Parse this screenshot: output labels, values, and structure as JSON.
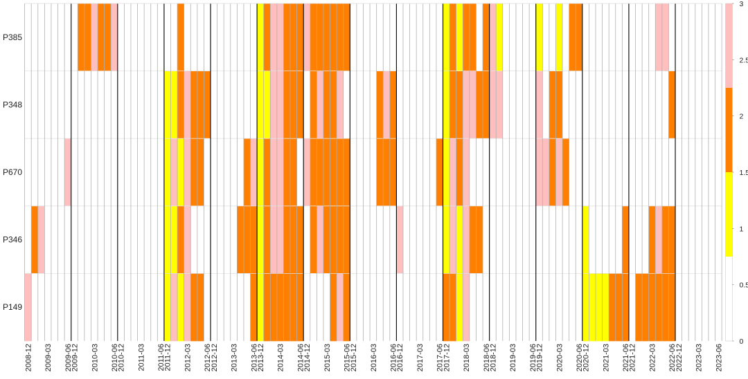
{
  "chart_data": {
    "type": "heatmap",
    "title": "",
    "xlabel": "",
    "ylabel": "",
    "rows": [
      "P385",
      "P348",
      "P670",
      "P346",
      "P149"
    ],
    "n_columns": 105,
    "x_ticks": [
      {
        "col": 0,
        "label": "2008-12"
      },
      {
        "col": 3,
        "label": "2009-03"
      },
      {
        "col": 6,
        "label": "2009-06"
      },
      {
        "col": 7,
        "label": "2009-12"
      },
      {
        "col": 10,
        "label": "2010-03"
      },
      {
        "col": 13,
        "label": "2010-06"
      },
      {
        "col": 14,
        "label": "2010-12"
      },
      {
        "col": 17,
        "label": "2011-03"
      },
      {
        "col": 20,
        "label": "2011-06"
      },
      {
        "col": 21,
        "label": "2011-12"
      },
      {
        "col": 24,
        "label": "2012-03"
      },
      {
        "col": 27,
        "label": "2012-06"
      },
      {
        "col": 28,
        "label": "2012-12"
      },
      {
        "col": 31,
        "label": "2013-03"
      },
      {
        "col": 34,
        "label": "2013-06"
      },
      {
        "col": 35,
        "label": "2013-12"
      },
      {
        "col": 38,
        "label": "2014-03"
      },
      {
        "col": 41,
        "label": "2014-06"
      },
      {
        "col": 42,
        "label": "2014-12"
      },
      {
        "col": 45,
        "label": "2015-03"
      },
      {
        "col": 48,
        "label": "2015-06"
      },
      {
        "col": 49,
        "label": "2015-12"
      },
      {
        "col": 52,
        "label": "2016-03"
      },
      {
        "col": 55,
        "label": "2016-06"
      },
      {
        "col": 56,
        "label": "2016-12"
      },
      {
        "col": 59,
        "label": "2017-03"
      },
      {
        "col": 62,
        "label": "2017-06"
      },
      {
        "col": 63,
        "label": "2017-12"
      },
      {
        "col": 66,
        "label": "2018-03"
      },
      {
        "col": 69,
        "label": "2018-06"
      },
      {
        "col": 70,
        "label": "2018-12"
      },
      {
        "col": 73,
        "label": "2019-03"
      },
      {
        "col": 76,
        "label": "2019-06"
      },
      {
        "col": 77,
        "label": "2019-12"
      },
      {
        "col": 80,
        "label": "2020-03"
      },
      {
        "col": 83,
        "label": "2020-06"
      },
      {
        "col": 84,
        "label": "2020-12"
      },
      {
        "col": 87,
        "label": "2021-03"
      },
      {
        "col": 90,
        "label": "2021-06"
      },
      {
        "col": 91,
        "label": "2021-12"
      },
      {
        "col": 94,
        "label": "2022-03"
      },
      {
        "col": 97,
        "label": "2022-06"
      },
      {
        "col": 98,
        "label": "2022-12"
      },
      {
        "col": 101,
        "label": "2023-03"
      },
      {
        "col": 104,
        "label": "2023-06"
      }
    ],
    "year_boundaries": [
      7,
      14,
      21,
      28,
      35,
      42,
      49,
      56,
      63,
      70,
      77,
      84,
      91,
      98
    ],
    "values": [
      [
        0,
        0,
        0,
        0,
        0,
        0,
        0,
        0,
        2,
        2,
        3,
        2,
        2,
        3,
        0,
        0,
        0,
        0,
        0,
        0,
        0,
        0,
        0,
        2,
        0,
        0,
        0,
        0,
        0,
        0,
        0,
        0,
        0,
        0,
        0,
        1,
        2,
        3,
        3,
        2,
        2,
        2,
        3,
        2,
        2,
        2,
        2,
        2,
        2,
        0,
        0,
        0,
        0,
        0,
        0,
        0,
        0,
        0,
        0,
        0,
        0,
        0,
        0,
        1,
        2,
        1,
        2,
        2,
        0,
        2,
        3,
        1,
        0,
        0,
        0,
        0,
        0,
        1,
        0,
        0,
        1,
        0,
        2,
        2,
        0,
        0,
        0,
        0,
        0,
        0,
        0,
        0,
        0,
        0,
        0,
        3,
        3,
        0,
        0,
        0,
        0,
        0,
        0,
        0,
        0
      ],
      [
        0,
        0,
        0,
        0,
        0,
        0,
        0,
        0,
        0,
        0,
        0,
        0,
        0,
        0,
        0,
        0,
        0,
        0,
        0,
        0,
        0,
        1,
        1,
        2,
        3,
        2,
        2,
        2,
        0,
        0,
        0,
        0,
        0,
        0,
        0,
        1,
        1,
        3,
        3,
        2,
        2,
        2,
        0,
        2,
        3,
        2,
        2,
        3,
        0,
        0,
        0,
        0,
        0,
        2,
        3,
        2,
        0,
        0,
        0,
        0,
        0,
        0,
        0,
        1,
        2,
        2,
        3,
        3,
        2,
        2,
        3,
        3,
        0,
        0,
        0,
        0,
        0,
        3,
        0,
        2,
        2,
        0,
        0,
        0,
        0,
        0,
        0,
        0,
        0,
        0,
        0,
        0,
        0,
        0,
        0,
        0,
        0,
        2,
        0,
        0,
        0,
        0,
        0,
        0,
        0
      ],
      [
        0,
        0,
        0,
        0,
        0,
        0,
        3,
        0,
        0,
        0,
        0,
        0,
        0,
        0,
        0,
        0,
        0,
        0,
        0,
        0,
        0,
        1,
        3,
        1,
        3,
        2,
        2,
        0,
        0,
        0,
        0,
        0,
        0,
        2,
        3,
        1,
        2,
        3,
        3,
        2,
        2,
        0,
        3,
        2,
        2,
        2,
        2,
        2,
        2,
        0,
        0,
        0,
        0,
        2,
        2,
        2,
        0,
        0,
        0,
        0,
        0,
        0,
        2,
        1,
        3,
        2,
        3,
        0,
        0,
        0,
        0,
        0,
        0,
        0,
        0,
        0,
        0,
        3,
        3,
        2,
        3,
        2,
        0,
        0,
        0,
        0,
        0,
        0,
        0,
        0,
        0,
        0,
        0,
        0,
        0,
        0,
        0,
        0,
        0,
        0,
        0,
        0,
        0,
        0,
        0
      ],
      [
        0,
        2,
        3,
        0,
        0,
        0,
        0,
        0,
        0,
        0,
        0,
        0,
        0,
        0,
        0,
        0,
        0,
        0,
        0,
        0,
        0,
        1,
        1,
        2,
        3,
        0,
        0,
        0,
        0,
        0,
        0,
        0,
        2,
        2,
        2,
        1,
        2,
        3,
        3,
        2,
        2,
        2,
        0,
        2,
        3,
        2,
        2,
        2,
        2,
        0,
        0,
        0,
        0,
        0,
        0,
        0,
        3,
        0,
        0,
        0,
        0,
        0,
        0,
        1,
        3,
        1,
        3,
        2,
        2,
        0,
        0,
        0,
        0,
        0,
        0,
        0,
        0,
        0,
        0,
        0,
        0,
        0,
        0,
        0,
        1,
        0,
        0,
        0,
        0,
        0,
        2,
        0,
        0,
        0,
        2,
        3,
        2,
        2,
        0,
        0,
        0,
        0,
        0,
        0,
        0
      ],
      [
        3,
        0,
        0,
        0,
        0,
        0,
        0,
        0,
        0,
        0,
        0,
        0,
        0,
        0,
        0,
        0,
        0,
        0,
        0,
        0,
        0,
        1,
        3,
        1,
        3,
        2,
        2,
        0,
        0,
        0,
        0,
        0,
        0,
        0,
        2,
        1,
        2,
        2,
        2,
        2,
        2,
        2,
        0,
        0,
        0,
        0,
        2,
        3,
        2,
        0,
        0,
        0,
        0,
        0,
        0,
        0,
        0,
        0,
        0,
        0,
        0,
        0,
        0,
        2,
        2,
        1,
        3,
        0,
        0,
        0,
        0,
        0,
        0,
        0,
        0,
        0,
        0,
        0,
        0,
        0,
        0,
        0,
        0,
        0,
        1,
        1,
        1,
        1,
        2,
        2,
        2,
        0,
        2,
        2,
        2,
        2,
        2,
        2,
        0,
        0,
        0,
        0,
        0,
        0,
        0
      ]
    ],
    "colorbar": {
      "range": [
        0,
        3
      ],
      "ticks": [
        "0",
        "0.5",
        "1",
        "1.5",
        "2",
        "2.5",
        "3"
      ],
      "bands": [
        {
          "from": 0,
          "to": 0.75,
          "color": "#ffffff"
        },
        {
          "from": 0.75,
          "to": 1.5,
          "color": "#ffff00"
        },
        {
          "from": 1.5,
          "to": 2.25,
          "color": "#ff7f00"
        },
        {
          "from": 2.25,
          "to": 3,
          "color": "#ffbfbf"
        }
      ]
    },
    "value_colors": {
      "0": "#ffffff",
      "1": "#ffff00",
      "2": "#ff7f00",
      "3": "#ffbfbf"
    }
  }
}
